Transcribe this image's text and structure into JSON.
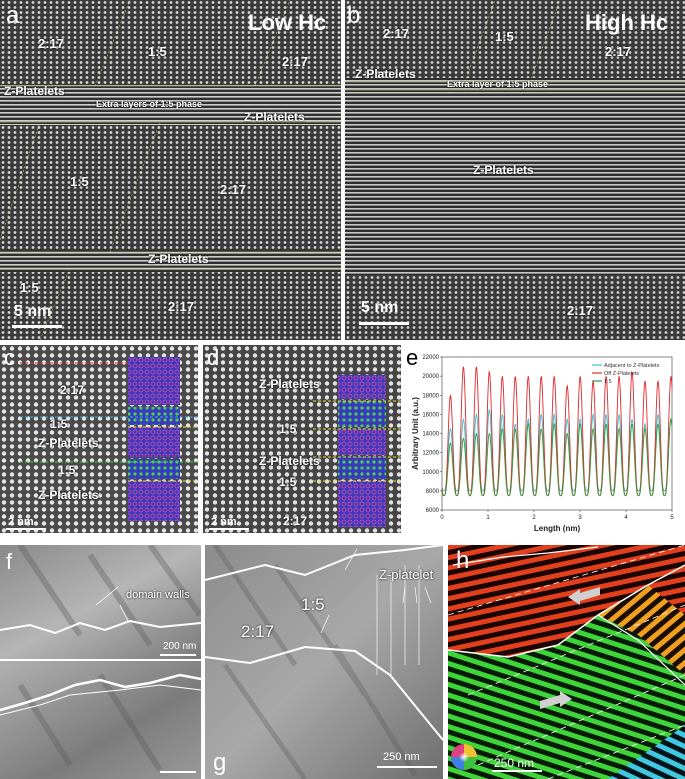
{
  "panel_a": {
    "letter": "a",
    "title": "Low Hc",
    "labels": [
      "2:17",
      "1:5",
      "2:17",
      "Z-Platelets",
      "Extra layers of 1:5 phase",
      "Z-Platelets",
      "1:5",
      "2:17",
      "Z-Platelets",
      "1:5",
      "2:17"
    ],
    "scale": "5 nm"
  },
  "panel_b": {
    "letter": "b",
    "title": "High Hc",
    "labels": [
      "2:17",
      "1:5",
      "2:17",
      "Z-Platelets",
      "Extra layer of 1:5 phase",
      "Z-Platelets",
      "2:17"
    ],
    "scale": "5 nm"
  },
  "panel_c": {
    "letter": "c",
    "labels": [
      "2:17",
      "1:5",
      "Z-Platelets",
      "1:5",
      "Z-Platelets"
    ],
    "scale": "2 nm"
  },
  "panel_d": {
    "letter": "d",
    "labels": [
      "Z-Platelets",
      "1:5",
      "Z-Platelets",
      "1:5",
      "2:17"
    ],
    "scale": "2 nm"
  },
  "panel_e": {
    "letter": "e"
  },
  "panel_f": {
    "letter": "f",
    "annotation": "domain walls",
    "scale": "200 nm"
  },
  "panel_g": {
    "letter": "g",
    "labels": [
      "Z-platelet",
      "1:5",
      "2:17"
    ],
    "scale": "250 nm"
  },
  "panel_h": {
    "letter": "h",
    "scale": "250 nm"
  },
  "chart_data": {
    "type": "line",
    "title": "",
    "xlabel": "Length (nm)",
    "ylabel": "Arbitrary Unit (a.u.)",
    "xlim": [
      0,
      5
    ],
    "ylim": [
      6000,
      22000
    ],
    "xticks": [
      "0",
      "1",
      "2",
      "3",
      "4",
      "5"
    ],
    "yticks": [
      "6000",
      "8000",
      "10000",
      "12000",
      "14000",
      "16000",
      "18000",
      "20000",
      "22000"
    ],
    "legend_position": "top-right",
    "series": [
      {
        "name": "Adjacent to Z-Platelets",
        "color": "#33c3d6",
        "period": 0.282,
        "peaks": [
          14500,
          15500,
          16000,
          16500,
          16000,
          15000,
          15500,
          16000,
          16000,
          15500,
          15500,
          16000,
          16000,
          16000,
          15500,
          15000,
          16000,
          15500
        ],
        "minimum": 8000
      },
      {
        "name": "Off Z-Platelets",
        "color": "#e0292b",
        "period": 0.282,
        "peaks": [
          18000,
          21000,
          21000,
          20500,
          20000,
          20000,
          20000,
          20000,
          20000,
          19000,
          20000,
          19500,
          20000,
          20000,
          20500,
          19500,
          19500,
          20000
        ],
        "minimum": 7500
      },
      {
        "name": "1:5",
        "color": "#3a9a3a",
        "period": 0.282,
        "peaks": [
          13000,
          13500,
          14000,
          14000,
          14500,
          14500,
          15000,
          14500,
          15000,
          14000,
          15000,
          14500,
          15000,
          14500,
          15000,
          14500,
          15000,
          15500
        ],
        "minimum": 7500
      }
    ]
  }
}
